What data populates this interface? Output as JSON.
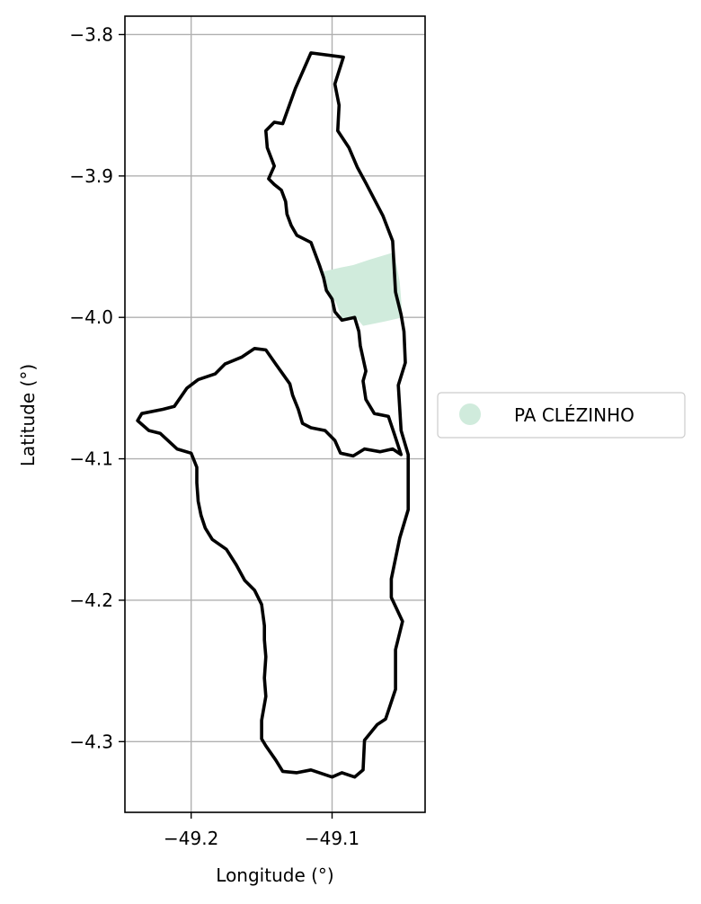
{
  "chart_data": {
    "type": "map",
    "xlabel": "Longitude (°)",
    "ylabel": "Latitude (°)",
    "xlim": [
      -49.247,
      -49.034
    ],
    "ylim": [
      -4.35,
      -3.787
    ],
    "grid": true,
    "x_ticks": [
      {
        "value": -49.2,
        "label": "−49.2"
      },
      {
        "value": -49.1,
        "label": "−49.1"
      }
    ],
    "y_ticks": [
      {
        "value": -3.8,
        "label": "−3.8"
      },
      {
        "value": -3.9,
        "label": "−3.9"
      },
      {
        "value": -4.0,
        "label": "−4.0"
      },
      {
        "value": -4.1,
        "label": "−4.1"
      },
      {
        "value": -4.2,
        "label": "−4.2"
      },
      {
        "value": -4.3,
        "label": "−4.3"
      }
    ],
    "legend": {
      "placement": "right",
      "entries": [
        {
          "label": "PA CLÉZINHO",
          "color": "#d0ebdc",
          "marker": "circle"
        }
      ]
    },
    "series": [
      {
        "kind": "boundary",
        "color": "#000000",
        "coordinates": [
          [
            -49.115,
            -3.813
          ],
          [
            -49.092,
            -3.816
          ],
          [
            -49.098,
            -3.835
          ],
          [
            -49.095,
            -3.85
          ],
          [
            -49.096,
            -3.868
          ],
          [
            -49.088,
            -3.88
          ],
          [
            -49.082,
            -3.894
          ],
          [
            -49.076,
            -3.905
          ],
          [
            -49.064,
            -3.928
          ],
          [
            -49.057,
            -3.946
          ],
          [
            -49.055,
            -3.982
          ],
          [
            -49.051,
            -3.998
          ],
          [
            -49.049,
            -4.01
          ],
          [
            -49.048,
            -4.032
          ],
          [
            -49.053,
            -4.048
          ],
          [
            -49.051,
            -4.08
          ],
          [
            -49.046,
            -4.097
          ],
          [
            -49.046,
            -4.136
          ],
          [
            -49.052,
            -4.156
          ],
          [
            -49.058,
            -4.185
          ],
          [
            -49.058,
            -4.198
          ],
          [
            -49.05,
            -4.215
          ],
          [
            -49.055,
            -4.235
          ],
          [
            -49.055,
            -4.263
          ],
          [
            -49.062,
            -4.284
          ],
          [
            -49.068,
            -4.288
          ],
          [
            -49.077,
            -4.299
          ],
          [
            -49.078,
            -4.32
          ],
          [
            -49.084,
            -4.325
          ],
          [
            -49.093,
            -4.322
          ],
          [
            -49.1,
            -4.325
          ],
          [
            -49.115,
            -4.32
          ],
          [
            -49.125,
            -4.322
          ],
          [
            -49.135,
            -4.321
          ],
          [
            -49.14,
            -4.313
          ],
          [
            -49.147,
            -4.303
          ],
          [
            -49.15,
            -4.298
          ],
          [
            -49.15,
            -4.285
          ],
          [
            -49.147,
            -4.268
          ],
          [
            -49.148,
            -4.255
          ],
          [
            -49.147,
            -4.24
          ],
          [
            -49.148,
            -4.228
          ],
          [
            -49.148,
            -4.218
          ],
          [
            -49.15,
            -4.203
          ],
          [
            -49.155,
            -4.193
          ],
          [
            -49.162,
            -4.186
          ],
          [
            -49.168,
            -4.175
          ],
          [
            -49.175,
            -4.164
          ],
          [
            -49.185,
            -4.157
          ],
          [
            -49.19,
            -4.149
          ],
          [
            -49.193,
            -4.14
          ],
          [
            -49.195,
            -4.13
          ],
          [
            -49.196,
            -4.117
          ],
          [
            -49.196,
            -4.106
          ],
          [
            -49.2,
            -4.096
          ],
          [
            -49.21,
            -4.093
          ],
          [
            -49.222,
            -4.082
          ],
          [
            -49.23,
            -4.08
          ],
          [
            -49.238,
            -4.073
          ],
          [
            -49.235,
            -4.068
          ],
          [
            -49.22,
            -4.065
          ],
          [
            -49.212,
            -4.063
          ],
          [
            -49.203,
            -4.05
          ],
          [
            -49.195,
            -4.044
          ],
          [
            -49.183,
            -4.04
          ],
          [
            -49.176,
            -4.033
          ],
          [
            -49.164,
            -4.028
          ],
          [
            -49.155,
            -4.022
          ],
          [
            -49.147,
            -4.023
          ],
          [
            -49.14,
            -4.033
          ],
          [
            -49.135,
            -4.04
          ],
          [
            -49.13,
            -4.047
          ],
          [
            -49.128,
            -4.055
          ],
          [
            -49.124,
            -4.065
          ],
          [
            -49.121,
            -4.075
          ],
          [
            -49.115,
            -4.078
          ],
          [
            -49.105,
            -4.08
          ],
          [
            -49.098,
            -4.087
          ],
          [
            -49.094,
            -4.096
          ],
          [
            -49.085,
            -4.098
          ],
          [
            -49.077,
            -4.093
          ],
          [
            -49.066,
            -4.095
          ],
          [
            -49.057,
            -4.093
          ],
          [
            -49.051,
            -4.097
          ],
          [
            -49.056,
            -4.082
          ],
          [
            -49.06,
            -4.07
          ],
          [
            -49.07,
            -4.068
          ],
          [
            -49.076,
            -4.058
          ],
          [
            -49.078,
            -4.045
          ],
          [
            -49.076,
            -4.038
          ],
          [
            -49.08,
            -4.02
          ],
          [
            -49.081,
            -4.01
          ],
          [
            -49.084,
            -4.0
          ],
          [
            -49.093,
            -4.002
          ],
          [
            -49.098,
            -3.996
          ],
          [
            -49.1,
            -3.987
          ],
          [
            -49.104,
            -3.981
          ],
          [
            -49.106,
            -3.972
          ],
          [
            -49.109,
            -3.963
          ],
          [
            -49.112,
            -3.955
          ],
          [
            -49.115,
            -3.947
          ],
          [
            -49.125,
            -3.942
          ],
          [
            -49.129,
            -3.935
          ],
          [
            -49.132,
            -3.927
          ],
          [
            -49.133,
            -3.918
          ],
          [
            -49.136,
            -3.91
          ],
          [
            -49.141,
            -3.906
          ],
          [
            -49.145,
            -3.902
          ],
          [
            -49.141,
            -3.893
          ],
          [
            -49.146,
            -3.88
          ],
          [
            -49.147,
            -3.868
          ],
          [
            -49.141,
            -3.862
          ],
          [
            -49.135,
            -3.863
          ],
          [
            -49.126,
            -3.838
          ],
          [
            -49.115,
            -3.813
          ]
        ]
      },
      {
        "name": "PA CLÉZINHO",
        "kind": "area",
        "color": "#d0ebdc",
        "coordinates": [
          [
            -49.108,
            -3.968
          ],
          [
            -49.095,
            -3.965
          ],
          [
            -49.085,
            -3.963
          ],
          [
            -49.073,
            -3.959
          ],
          [
            -49.056,
            -3.954
          ],
          [
            -49.052,
            -3.975
          ],
          [
            -49.05,
            -4.0
          ],
          [
            -49.063,
            -4.003
          ],
          [
            -49.078,
            -4.006
          ],
          [
            -49.083,
            -4.0
          ],
          [
            -49.093,
            -4.001
          ],
          [
            -49.097,
            -3.99
          ],
          [
            -49.103,
            -3.981
          ],
          [
            -49.106,
            -3.975
          ],
          [
            -49.108,
            -3.968
          ]
        ]
      }
    ]
  }
}
